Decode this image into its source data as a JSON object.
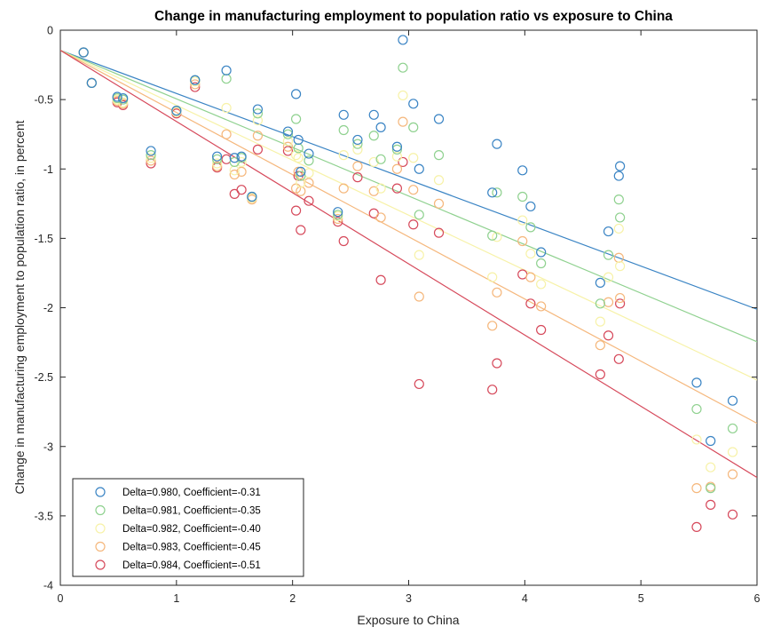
{
  "chart_data": {
    "type": "scatter",
    "title": "Change in manufacturing employment to population ratio vs exposure to China",
    "xlabel": "Exposure to China",
    "ylabel": "Change in manufacturing employment to population ratio, in percent",
    "xlim": [
      0,
      6
    ],
    "ylim": [
      -4,
      0
    ],
    "xticks": [
      0,
      1,
      2,
      3,
      4,
      5,
      6
    ],
    "xtick_labels": [
      "0",
      "1",
      "2",
      "3",
      "4",
      "5",
      "6"
    ],
    "yticks": [
      0,
      -0.5,
      -1,
      -1.5,
      -2,
      -2.5,
      -3,
      -3.5,
      -4
    ],
    "ytick_labels": [
      "0",
      "-0.5",
      "-1",
      "-1.5",
      "-2",
      "-2.5",
      "-3",
      "-3.5",
      "-4"
    ],
    "grid": false,
    "legend_position": "bottom-left",
    "x": [
      0.2,
      0.27,
      0.49,
      0.54,
      0.78,
      1.0,
      1.16,
      1.35,
      1.43,
      1.5,
      1.56,
      1.65,
      1.7,
      1.96,
      2.03,
      2.05,
      2.07,
      2.14,
      2.39,
      2.44,
      2.56,
      2.7,
      2.76,
      2.9,
      2.95,
      3.04,
      3.09,
      3.26,
      3.72,
      3.76,
      3.98,
      4.05,
      4.14,
      4.65,
      4.72,
      4.82,
      4.81,
      5.48,
      5.6,
      5.79
    ],
    "series": [
      {
        "name": "Delta=0.980, Coefficient=-0.31",
        "color": "#3a84c4",
        "fit": {
          "intercept": -0.145,
          "slope": -0.311
        },
        "y": [
          -0.16,
          -0.38,
          -0.48,
          -0.49,
          -0.87,
          -0.58,
          -0.36,
          -0.91,
          -0.29,
          -0.92,
          -0.91,
          -1.2,
          -0.57,
          -0.73,
          -0.46,
          -0.79,
          -1.02,
          -0.89,
          -1.31,
          -0.61,
          -0.79,
          -0.61,
          -0.7,
          -0.84,
          -0.07,
          -0.53,
          -1.0,
          -0.64,
          -1.17,
          -0.82,
          -1.01,
          -1.27,
          -1.6,
          -1.82,
          -1.45,
          -0.98,
          -1.05,
          -2.54,
          -2.96,
          -2.67
        ]
      },
      {
        "name": "Delta=0.981, Coefficient=-0.35",
        "color": "#8fd18f",
        "fit": {
          "intercept": -0.145,
          "slope": -0.35
        },
        "y": [
          -0.16,
          -0.38,
          -0.49,
          -0.5,
          -0.9,
          -0.58,
          -0.36,
          -0.93,
          -0.35,
          -0.95,
          -0.92,
          -1.2,
          -0.6,
          -0.75,
          -0.64,
          -0.85,
          -1.05,
          -0.94,
          -1.33,
          -0.72,
          -0.82,
          -0.76,
          -0.93,
          -0.86,
          -0.27,
          -0.7,
          -1.33,
          -0.9,
          -1.48,
          -1.17,
          -1.2,
          -1.42,
          -1.68,
          -1.97,
          -1.62,
          -1.35,
          -1.22,
          -2.73,
          -3.3,
          -2.87
        ]
      },
      {
        "name": "Delta=0.982, Coefficient=-0.40",
        "color": "#f7f2a8",
        "fit": {
          "intercept": -0.145,
          "slope": -0.396
        },
        "y": [
          -0.16,
          -0.38,
          -0.5,
          -0.52,
          -0.92,
          -0.59,
          -0.37,
          -0.96,
          -0.56,
          -1.01,
          -0.95,
          -1.21,
          -0.65,
          -0.8,
          -0.9,
          -0.92,
          -1.1,
          -1.03,
          -1.34,
          -0.9,
          -0.86,
          -0.95,
          -1.14,
          -0.91,
          -0.47,
          -0.92,
          -1.62,
          -1.08,
          -1.78,
          -1.49,
          -1.37,
          -1.61,
          -1.83,
          -2.1,
          -1.78,
          -1.7,
          -1.43,
          -2.95,
          -3.15,
          -3.04
        ]
      },
      {
        "name": "Delta=0.983, Coefficient=-0.45",
        "color": "#f5b77c",
        "fit": {
          "intercept": -0.145,
          "slope": -0.448
        },
        "y": [
          -0.16,
          -0.38,
          -0.51,
          -0.53,
          -0.94,
          -0.59,
          -0.39,
          -0.98,
          -0.75,
          -1.04,
          -1.02,
          -1.22,
          -0.76,
          -0.84,
          -1.14,
          -1.02,
          -1.16,
          -1.1,
          -1.36,
          -1.14,
          -0.98,
          -1.16,
          -1.35,
          -1.0,
          -0.66,
          -1.15,
          -1.92,
          -1.25,
          -2.13,
          -1.89,
          -1.52,
          -1.78,
          -1.99,
          -2.27,
          -1.96,
          -1.93,
          -1.64,
          -3.3,
          -3.29,
          -3.2
        ]
      },
      {
        "name": "Delta=0.984, Coefficient=-0.51",
        "color": "#d6495b",
        "fit": {
          "intercept": -0.145,
          "slope": -0.513
        },
        "y": [
          -0.16,
          -0.38,
          -0.52,
          -0.54,
          -0.96,
          -0.6,
          -0.41,
          -0.99,
          -0.93,
          -1.18,
          -1.15,
          -1.21,
          -0.86,
          -0.87,
          -1.3,
          -1.05,
          -1.44,
          -1.23,
          -1.38,
          -1.52,
          -1.06,
          -1.32,
          -1.8,
          -1.14,
          -0.95,
          -1.4,
          -2.55,
          -1.46,
          -2.59,
          -2.4,
          -1.76,
          -1.97,
          -2.16,
          -2.48,
          -2.2,
          -1.97,
          -2.37,
          -3.58,
          -3.42,
          -3.49
        ]
      }
    ]
  }
}
